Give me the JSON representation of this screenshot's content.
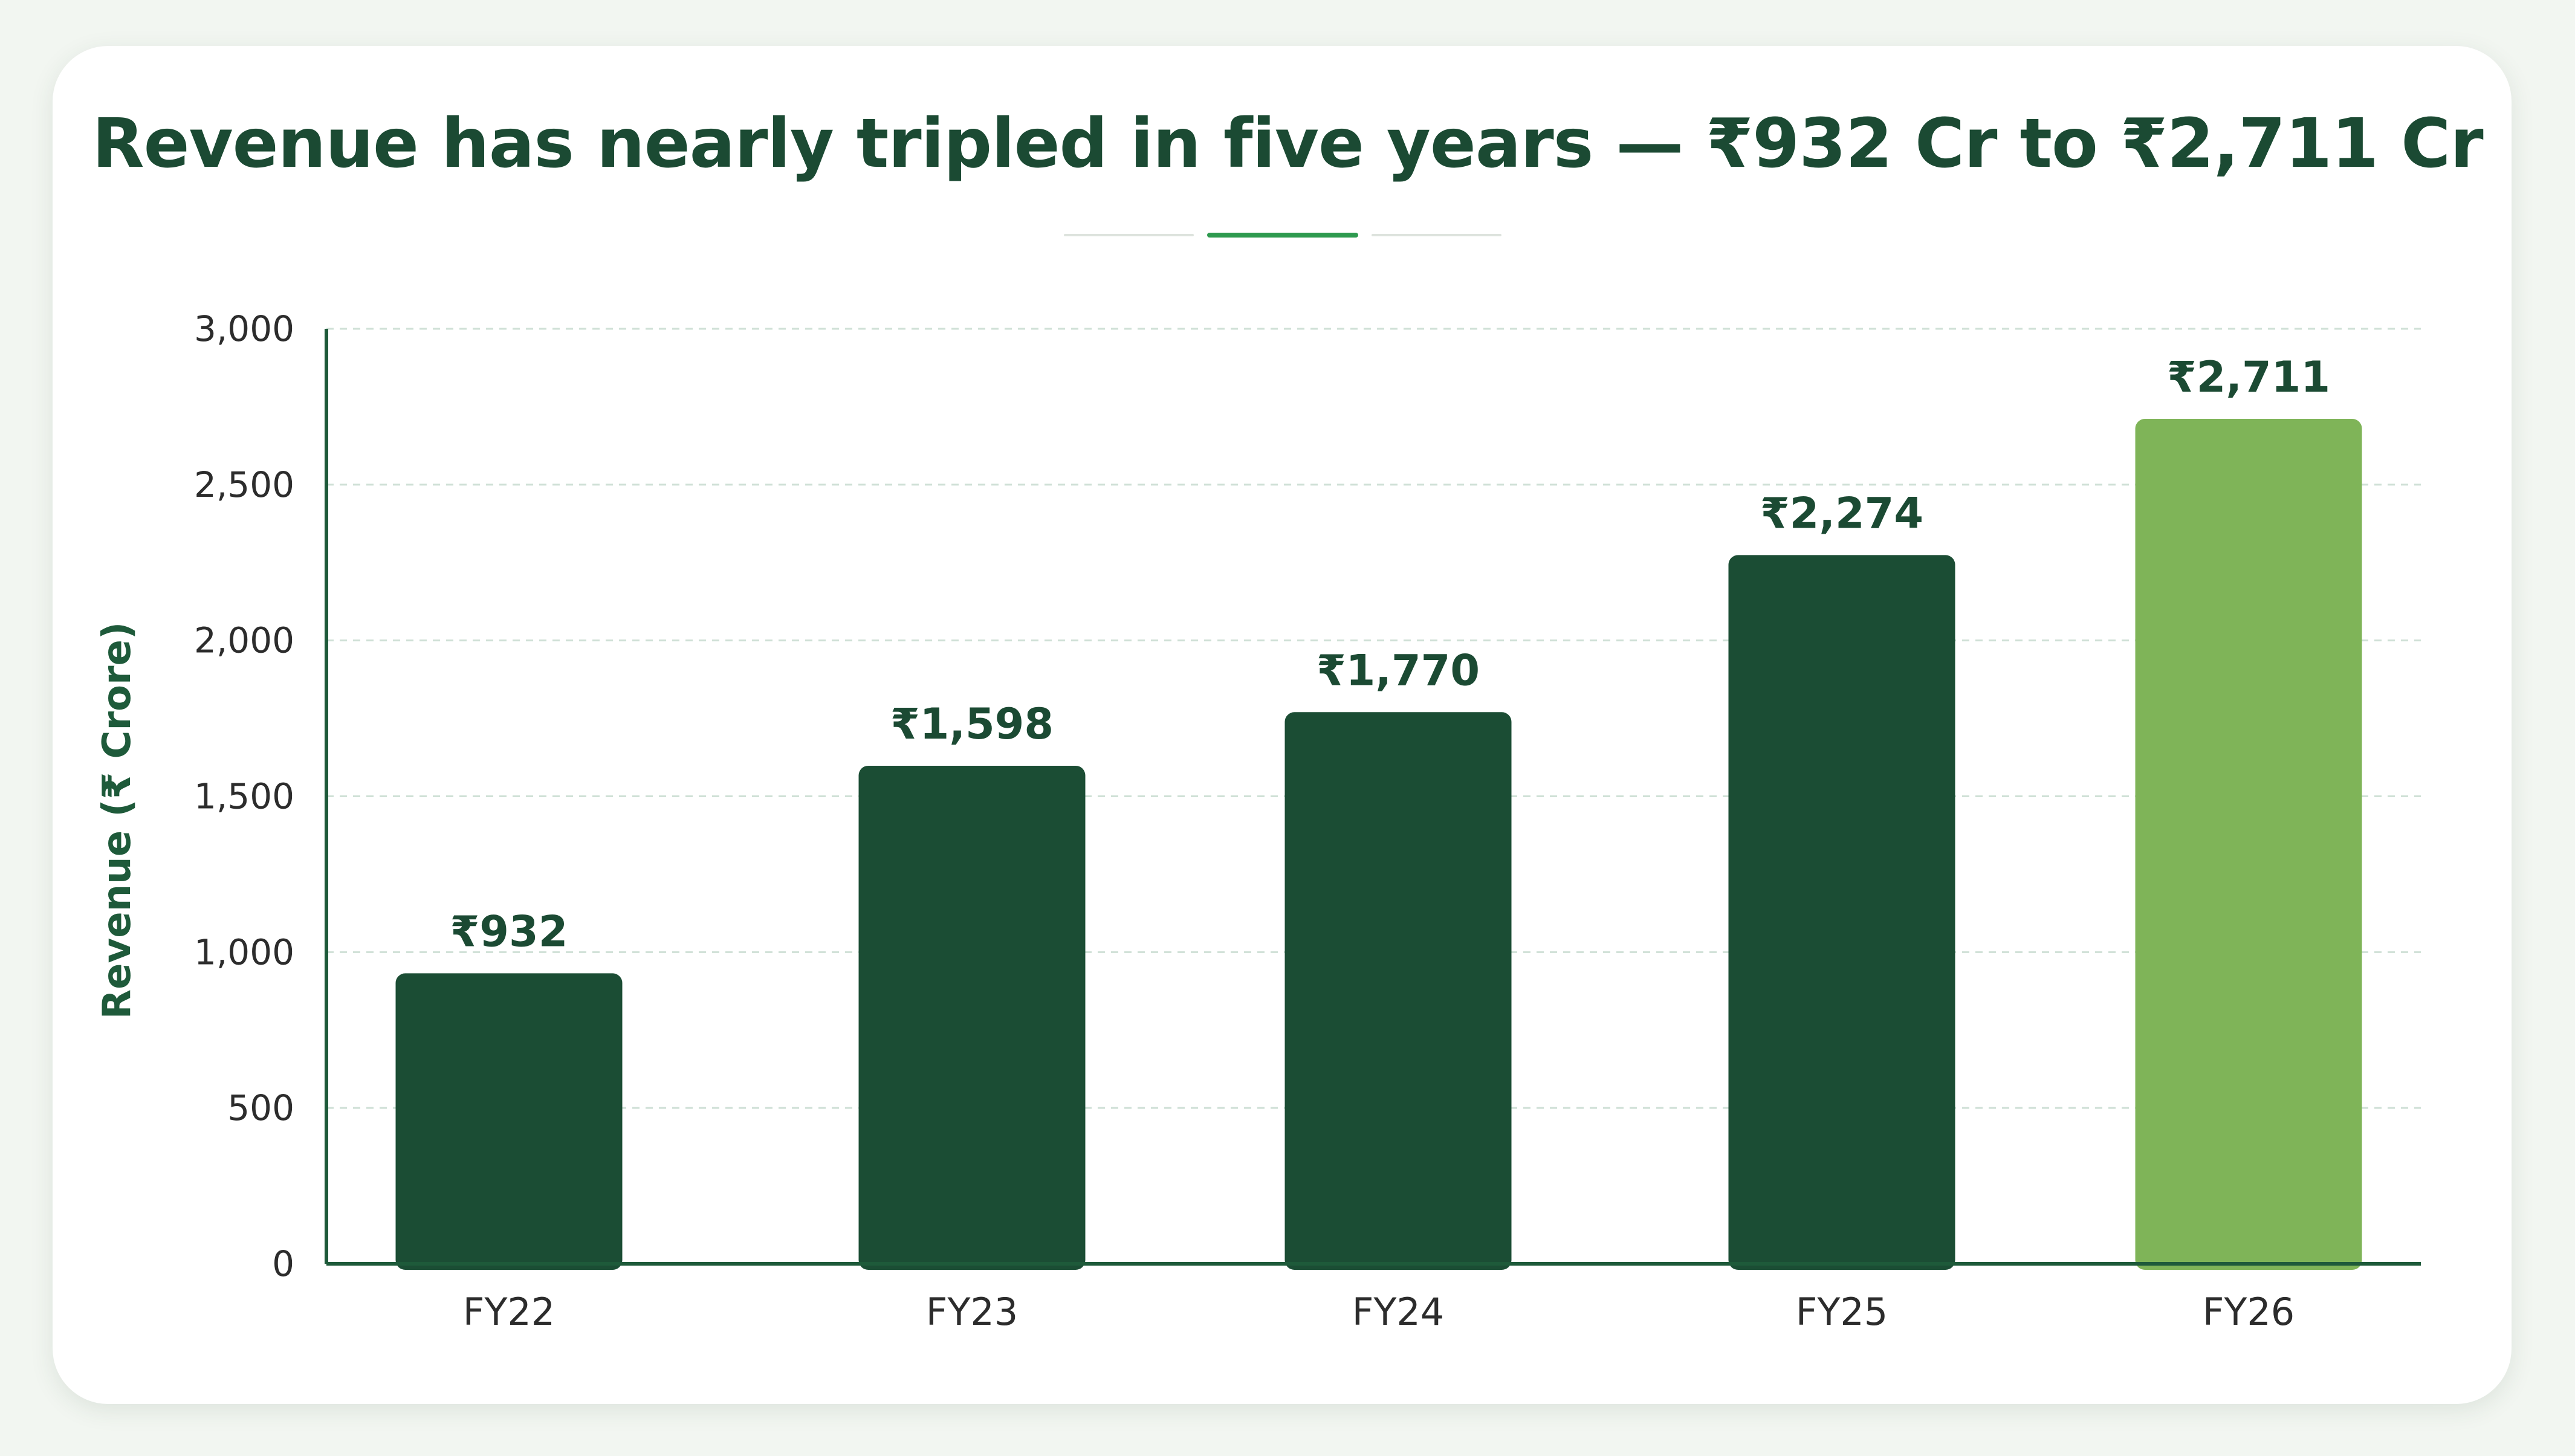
{
  "title": "Revenue has nearly tripled in five years — ₹932 Cr to ₹2,711 Cr",
  "colors": {
    "bar": "#1b4d34",
    "bar_highlight": "#7fb458",
    "axis": "#1e5a3a",
    "grid": "#cfe0d6",
    "title": "#1b4a33",
    "accent": "#2e9a4f"
  },
  "chart_data": {
    "type": "bar",
    "title": "Revenue has nearly tripled in five years — ₹932 Cr to ₹2,711 Cr",
    "xlabel": "",
    "ylabel": "Revenue (₹ Crore)",
    "categories": [
      "FY22",
      "FY23",
      "FY24",
      "FY25",
      "FY26"
    ],
    "values": [
      932,
      1598,
      1770,
      2274,
      2711
    ],
    "data_labels": [
      "₹932",
      "₹1,598",
      "₹1,770",
      "₹2,274",
      "₹2,711"
    ],
    "highlight_index": 4,
    "ylim": [
      0,
      3000
    ],
    "yticks": [
      0,
      500,
      1000,
      1500,
      2000,
      2500,
      3000
    ],
    "ytick_labels": [
      "0",
      "500",
      "1,000",
      "1,500",
      "2,000",
      "2,500",
      "3,000"
    ],
    "grid": true,
    "grid_style": "dashed horizontal",
    "legend": "none"
  }
}
